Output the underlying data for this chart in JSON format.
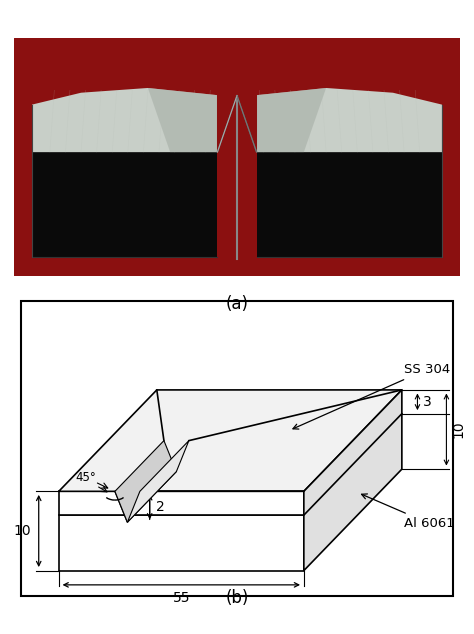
{
  "fig_width": 4.74,
  "fig_height": 6.34,
  "dpi": 100,
  "label_a": "(a)",
  "label_b": "(b)",
  "annotation_45": "45°",
  "annotation_2": "2",
  "annotation_3": "3",
  "annotation_10_right": "10",
  "annotation_10_bottom": "10",
  "annotation_55": "55",
  "label_ss304": "SS 304",
  "label_al6061": "Al 6061",
  "bg_color": "#ffffff",
  "box_color": "#000000",
  "red_bg": "#8B1010",
  "metal_light": "#c8cfc8",
  "metal_mid": "#a0a8a0",
  "metal_dark": "#606860",
  "dark_body": "#0a0a0a"
}
